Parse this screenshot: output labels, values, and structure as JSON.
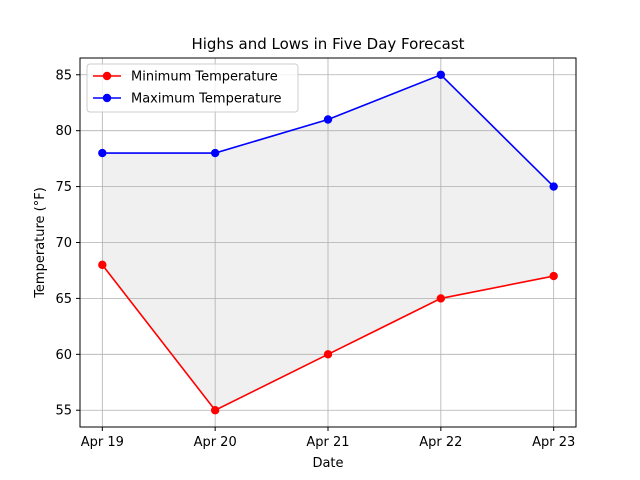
{
  "chart_data": {
    "type": "line",
    "title": "Highs and Lows in Five Day Forecast",
    "xlabel": "Date",
    "ylabel": "Temperature (°F)",
    "categories": [
      "Apr 19",
      "Apr 20",
      "Apr 21",
      "Apr 22",
      "Apr 23"
    ],
    "ylim": [
      53.5,
      86.5
    ],
    "yticks": [
      55,
      60,
      65,
      70,
      75,
      80,
      85
    ],
    "grid": true,
    "fill_between": true,
    "fill_color": "#f0f0f0",
    "legend_position": "top-left",
    "series": [
      {
        "name": "Minimum Temperature",
        "color": "#ff0000",
        "values": [
          68,
          55,
          60,
          65,
          67
        ]
      },
      {
        "name": "Maximum Temperature",
        "color": "#0000ff",
        "values": [
          78,
          78,
          81,
          85,
          75
        ]
      }
    ]
  }
}
